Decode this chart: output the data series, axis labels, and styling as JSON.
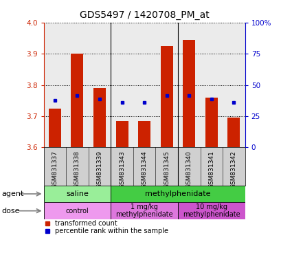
{
  "title": "GDS5497 / 1420708_PM_at",
  "samples": [
    "GSM831337",
    "GSM831338",
    "GSM831339",
    "GSM831343",
    "GSM831344",
    "GSM831345",
    "GSM831340",
    "GSM831341",
    "GSM831342"
  ],
  "bar_values": [
    3.725,
    3.9,
    3.79,
    3.685,
    3.685,
    3.925,
    3.945,
    3.76,
    3.695
  ],
  "blue_dots": [
    3.75,
    3.765,
    3.755,
    3.745,
    3.745,
    3.765,
    3.765,
    3.755,
    3.745
  ],
  "ylim": [
    3.6,
    4.0
  ],
  "yticks_left": [
    3.6,
    3.7,
    3.8,
    3.9,
    4.0
  ],
  "yticks_right": [
    0,
    25,
    50,
    75,
    100
  ],
  "bar_color": "#cc2200",
  "dot_color": "#0000cc",
  "bar_bottom": 3.6,
  "agent_groups": [
    {
      "label": "saline",
      "span": [
        0,
        3
      ],
      "color": "#99ee99"
    },
    {
      "label": "methylphenidate",
      "span": [
        3,
        9
      ],
      "color": "#44cc44"
    }
  ],
  "dose_groups": [
    {
      "label": "control",
      "span": [
        0,
        3
      ],
      "color": "#ee99ee"
    },
    {
      "label": "1 mg/kg\nmethylphenidate",
      "span": [
        3,
        6
      ],
      "color": "#dd77dd"
    },
    {
      "label": "10 mg/kg\nmethylphenidate",
      "span": [
        6,
        9
      ],
      "color": "#cc55cc"
    }
  ],
  "legend_items": [
    {
      "label": "transformed count",
      "color": "#cc2200"
    },
    {
      "label": "percentile rank within the sample",
      "color": "#0000cc"
    }
  ],
  "background_color": "#ffffff",
  "plot_bg": "#ebebeb",
  "grid_color": "#000000",
  "sample_bg": "#d0d0d0",
  "title_fontsize": 10,
  "tick_fontsize": 7.5,
  "sample_fontsize": 6.5,
  "legend_fontsize": 7,
  "row_label_fontsize": 8
}
